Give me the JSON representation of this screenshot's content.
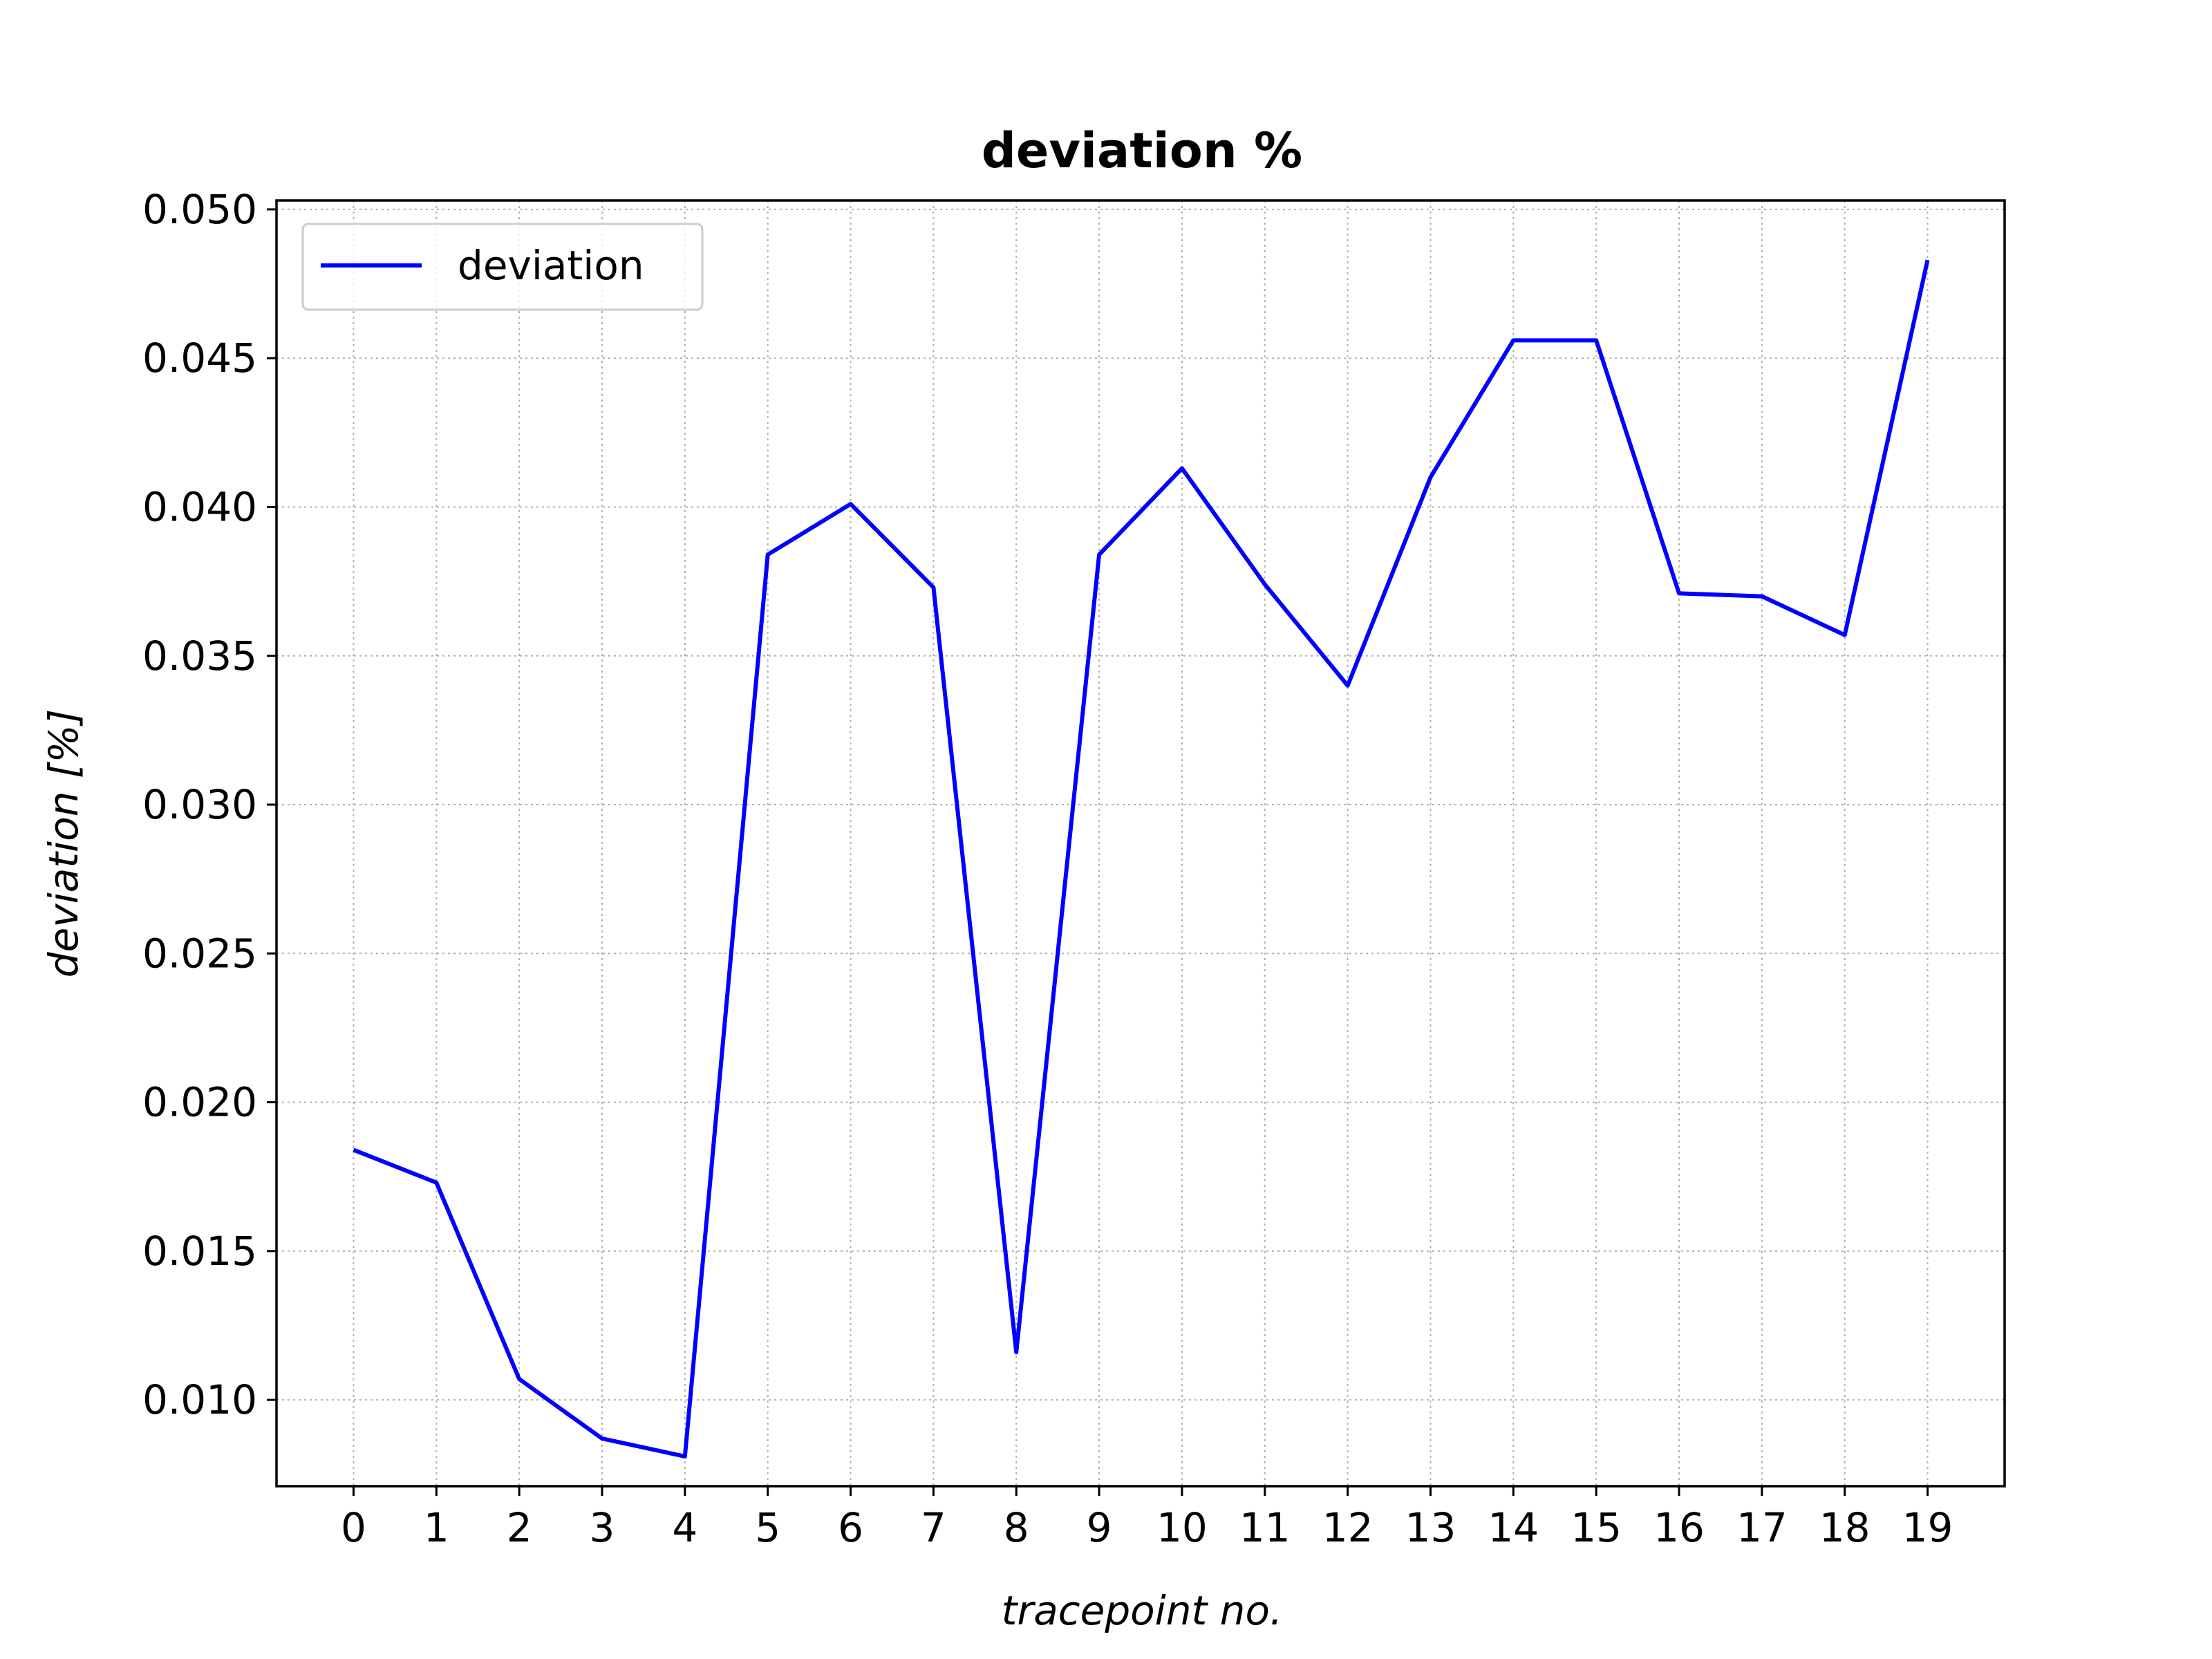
{
  "chart_data": {
    "type": "line",
    "title": "deviation %",
    "xlabel": "tracepoint no.",
    "ylabel": "deviation [%]",
    "x": [
      0,
      1,
      2,
      3,
      4,
      5,
      6,
      7,
      8,
      9,
      10,
      11,
      12,
      13,
      14,
      15,
      16,
      17,
      18,
      19
    ],
    "xticks": [
      "0",
      "1",
      "2",
      "3",
      "4",
      "5",
      "6",
      "7",
      "8",
      "9",
      "10",
      "11",
      "12",
      "13",
      "14",
      "15",
      "16",
      "17",
      "18",
      "19"
    ],
    "yticks": [
      "0.010",
      "0.015",
      "0.020",
      "0.025",
      "0.030",
      "0.035",
      "0.040",
      "0.045",
      "0.050"
    ],
    "ylim": [
      0.0071,
      0.0503
    ],
    "xlim": [
      -0.93,
      19.93
    ],
    "grid": true,
    "legend_position": "top-left",
    "series": [
      {
        "name": "deviation",
        "color": "#0000ff",
        "values": [
          0.0184,
          0.0173,
          0.0107,
          0.0087,
          0.0081,
          0.0384,
          0.0401,
          0.0373,
          0.0116,
          0.0384,
          0.0413,
          0.0374,
          0.034,
          0.041,
          0.0456,
          0.0456,
          0.0371,
          0.037,
          0.0357,
          0.0483
        ]
      }
    ]
  }
}
